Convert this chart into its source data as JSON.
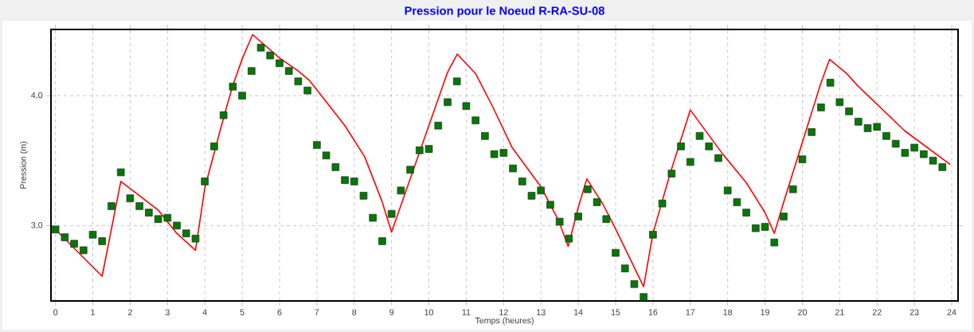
{
  "chart_data": {
    "type": "line",
    "title": "Pression pour le Noeud R-RA-SU-08",
    "xlabel": "Temps (heures)",
    "ylabel": "Pression (m)",
    "xlim": [
      -0.12,
      24.17
    ],
    "ylim": [
      2.42,
      4.51
    ],
    "xticks": [
      0,
      1,
      2,
      3,
      4,
      5,
      6,
      7,
      8,
      9,
      10,
      11,
      12,
      13,
      14,
      15,
      16,
      17,
      18,
      19,
      20,
      21,
      22,
      23,
      24
    ],
    "yticks": [
      {
        "value": 3,
        "label": "3,0"
      },
      {
        "value": 4,
        "label": "4,0"
      }
    ],
    "grid": true,
    "series": [
      {
        "color": "#ff0000",
        "marker": "none",
        "line_style": "solid",
        "x": [
          0,
          1.25,
          1.75,
          2.75,
          3.25,
          3.75,
          4.0,
          4.52,
          4.75,
          5.01,
          5.28,
          6.0,
          6.5,
          6.79,
          7.04,
          7.75,
          8.28,
          8.74,
          9.0,
          10.0,
          10.5,
          10.76,
          11.25,
          11.7,
          12.23,
          13.0,
          13.47,
          13.73,
          14.0,
          14.23,
          14.67,
          14.99,
          15.75,
          16.0,
          16.46,
          17.0,
          17.87,
          18.5,
          19.0,
          19.25,
          19.5,
          20.49,
          20.73,
          21.19,
          21.47,
          22.74,
          23.96
        ],
        "values": [
          2.97,
          2.61,
          3.34,
          3.12,
          2.94,
          2.81,
          3.29,
          3.85,
          4.08,
          4.29,
          4.47,
          4.29,
          4.19,
          4.12,
          4.03,
          3.77,
          3.53,
          3.19,
          2.95,
          3.77,
          4.18,
          4.32,
          4.17,
          3.92,
          3.6,
          3.3,
          3.04,
          2.84,
          3.14,
          3.36,
          3.16,
          2.98,
          2.53,
          2.94,
          3.4,
          3.89,
          3.55,
          3.33,
          3.1,
          2.94,
          3.18,
          4.09,
          4.28,
          4.17,
          4.08,
          3.73,
          3.47
        ]
      },
      {
        "type": "scatter",
        "color": "#007a00",
        "marker": "square",
        "x": [
          0,
          0.25,
          0.5,
          0.75,
          1,
          1.25,
          1.5,
          1.75,
          2,
          2.25,
          2.5,
          2.75,
          3,
          3.25,
          3.5,
          3.75,
          4,
          4.25,
          4.5,
          4.75,
          5,
          5.25,
          5.5,
          5.75,
          6,
          6.25,
          6.5,
          6.75,
          7,
          7.25,
          7.5,
          7.75,
          8,
          8.25,
          8.5,
          8.75,
          9,
          9.25,
          9.5,
          9.75,
          10,
          10.25,
          10.5,
          10.75,
          11,
          11.25,
          11.5,
          11.75,
          12,
          12.25,
          12.5,
          12.75,
          13,
          13.25,
          13.5,
          13.75,
          14,
          14.25,
          14.5,
          14.75,
          15,
          15.25,
          15.5,
          15.75,
          16,
          16.25,
          16.5,
          16.75,
          17,
          17.25,
          17.5,
          17.75,
          18,
          18.25,
          18.5,
          18.75,
          19,
          19.25,
          19.5,
          19.75,
          20,
          20.25,
          20.5,
          20.75,
          21,
          21.25,
          21.5,
          21.75,
          22,
          22.25,
          22.5,
          22.75,
          23,
          23.25,
          23.5,
          23.75
        ],
        "values": [
          2.97,
          2.91,
          2.86,
          2.81,
          2.93,
          2.88,
          3.15,
          3.41,
          3.21,
          3.15,
          3.1,
          3.05,
          3.06,
          3.0,
          2.94,
          2.9,
          3.34,
          3.61,
          3.85,
          4.07,
          4.0,
          4.19,
          4.37,
          4.31,
          4.25,
          4.19,
          4.11,
          4.04,
          3.62,
          3.54,
          3.45,
          3.35,
          3.34,
          3.23,
          3.06,
          2.88,
          3.09,
          3.27,
          3.43,
          3.58,
          3.59,
          3.77,
          3.95,
          4.11,
          3.92,
          3.81,
          3.69,
          3.55,
          3.56,
          3.44,
          3.34,
          3.23,
          3.27,
          3.16,
          3.03,
          2.9,
          3.07,
          3.28,
          3.18,
          3.05,
          2.79,
          2.67,
          2.55,
          2.45,
          2.93,
          3.17,
          3.4,
          3.61,
          3.49,
          3.69,
          3.61,
          3.52,
          3.27,
          3.18,
          3.1,
          2.98,
          2.99,
          2.87,
          3.07,
          3.28,
          3.51,
          3.72,
          3.91,
          4.1,
          3.95,
          3.88,
          3.8,
          3.75,
          3.76,
          3.69,
          3.63,
          3.56,
          3.6,
          3.55,
          3.5,
          3.45
        ]
      }
    ]
  }
}
